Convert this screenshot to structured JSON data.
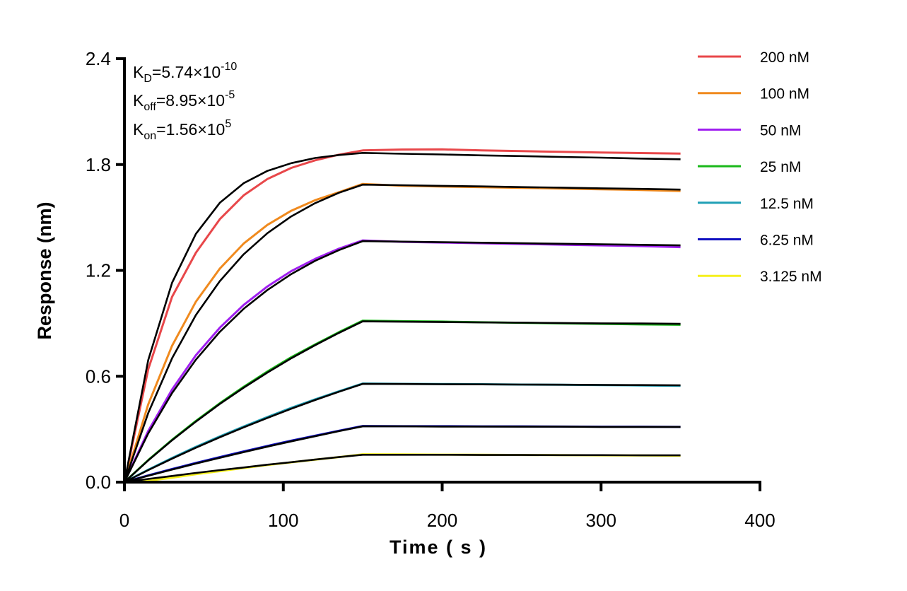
{
  "chart_data": {
    "type": "line",
    "xlabel": "Time ( s )",
    "ylabel": "Response (nm)",
    "xlim": [
      0,
      400
    ],
    "ylim": [
      0,
      2.4
    ],
    "xticks": [
      "0",
      "100",
      "200",
      "300",
      "400"
    ],
    "yticks": [
      "0.0",
      "0.6",
      "1.2",
      "1.8",
      "2.4"
    ],
    "grid": false,
    "legend_position": "top-right",
    "annotations": [
      {
        "base": "K",
        "sub": "D",
        "value": "=5.74×10",
        "exp": "-10"
      },
      {
        "base": "K",
        "sub": "off",
        "value": "=8.95×10",
        "exp": "-5"
      },
      {
        "base": "K",
        "sub": "on",
        "value": "=1.56×10",
        "exp": "5"
      }
    ],
    "fit_color": "#000000",
    "x": [
      0,
      15,
      30,
      45,
      60,
      75,
      90,
      105,
      120,
      135,
      150,
      175,
      200,
      225,
      250,
      275,
      300,
      325,
      350
    ],
    "series": [
      {
        "name": "200 nM",
        "color": "#e8474a",
        "values": [
          0,
          0.64,
          1.05,
          1.3,
          1.49,
          1.625,
          1.718,
          1.781,
          1.824,
          1.856,
          1.88,
          1.885,
          1.886,
          1.88,
          1.876,
          1.872,
          1.868,
          1.865,
          1.862
        ],
        "fit": [
          0,
          0.692,
          1.13,
          1.407,
          1.583,
          1.694,
          1.764,
          1.808,
          1.837,
          1.854,
          1.866,
          1.861,
          1.857,
          1.852,
          1.848,
          1.843,
          1.839,
          1.834,
          1.83
        ]
      },
      {
        "name": "100 nM",
        "color": "#f08a1e",
        "values": [
          0,
          0.441,
          0.773,
          1.023,
          1.21,
          1.352,
          1.458,
          1.538,
          1.598,
          1.643,
          1.69,
          1.68,
          1.675,
          1.672,
          1.668,
          1.664,
          1.66,
          1.656,
          1.65
        ],
        "fit": [
          0,
          0.392,
          0.702,
          0.947,
          1.139,
          1.291,
          1.411,
          1.506,
          1.581,
          1.64,
          1.686,
          1.683,
          1.679,
          1.676,
          1.672,
          1.669,
          1.665,
          1.662,
          1.658
        ]
      },
      {
        "name": "50 nM",
        "color": "#a020f0",
        "values": [
          0,
          0.29,
          0.525,
          0.719,
          0.875,
          1.004,
          1.109,
          1.196,
          1.265,
          1.323,
          1.37,
          1.362,
          1.358,
          1.354,
          1.35,
          1.346,
          1.342,
          1.338,
          1.332
        ],
        "fit": [
          0,
          0.276,
          0.505,
          0.694,
          0.852,
          0.982,
          1.089,
          1.179,
          1.254,
          1.315,
          1.366,
          1.363,
          1.36,
          1.357,
          1.354,
          1.351,
          1.348,
          1.345,
          1.342
        ]
      },
      {
        "name": "25 nM",
        "color": "#18b818",
        "values": [
          0,
          0.125,
          0.24,
          0.347,
          0.447,
          0.54,
          0.627,
          0.708,
          0.78,
          0.85,
          0.915,
          0.912,
          0.91,
          0.906,
          0.903,
          0.9,
          0.897,
          0.894,
          0.892
        ],
        "fit": [
          0,
          0.123,
          0.237,
          0.343,
          0.443,
          0.535,
          0.621,
          0.702,
          0.776,
          0.846,
          0.911,
          0.909,
          0.907,
          0.905,
          0.904,
          0.902,
          0.9,
          0.899,
          0.897
        ]
      },
      {
        "name": "12.5 nM",
        "color": "#1f9fb5",
        "values": [
          0,
          0.07,
          0.137,
          0.2,
          0.259,
          0.315,
          0.369,
          0.421,
          0.469,
          0.515,
          0.559,
          0.557,
          0.556,
          0.555,
          0.553,
          0.552,
          0.55,
          0.548,
          0.546
        ],
        "fit": [
          0,
          0.068,
          0.133,
          0.195,
          0.254,
          0.31,
          0.364,
          0.416,
          0.465,
          0.512,
          0.557,
          0.556,
          0.555,
          0.554,
          0.553,
          0.552,
          0.551,
          0.55,
          0.549
        ]
      },
      {
        "name": "6.25 nM",
        "color": "#1010c0",
        "values": [
          0,
          0.038,
          0.074,
          0.109,
          0.142,
          0.174,
          0.205,
          0.235,
          0.263,
          0.291,
          0.318,
          0.317,
          0.317,
          0.316,
          0.316,
          0.315,
          0.314,
          0.314,
          0.313
        ],
        "fit": [
          0,
          0.036,
          0.071,
          0.105,
          0.138,
          0.17,
          0.201,
          0.231,
          0.26,
          0.289,
          0.316,
          0.316,
          0.315,
          0.315,
          0.314,
          0.314,
          0.313,
          0.313,
          0.313
        ]
      },
      {
        "name": "3.125 nM",
        "color": "#f5f01e",
        "values": [
          0,
          0.008,
          0.025,
          0.045,
          0.062,
          0.08,
          0.097,
          0.112,
          0.127,
          0.142,
          0.158,
          0.157,
          0.156,
          0.155,
          0.154,
          0.153,
          0.152,
          0.151,
          0.15
        ],
        "fit": [
          0,
          0.018,
          0.035,
          0.052,
          0.068,
          0.083,
          0.099,
          0.113,
          0.128,
          0.142,
          0.155,
          0.155,
          0.155,
          0.154,
          0.154,
          0.153,
          0.153,
          0.152,
          0.152
        ]
      }
    ]
  }
}
